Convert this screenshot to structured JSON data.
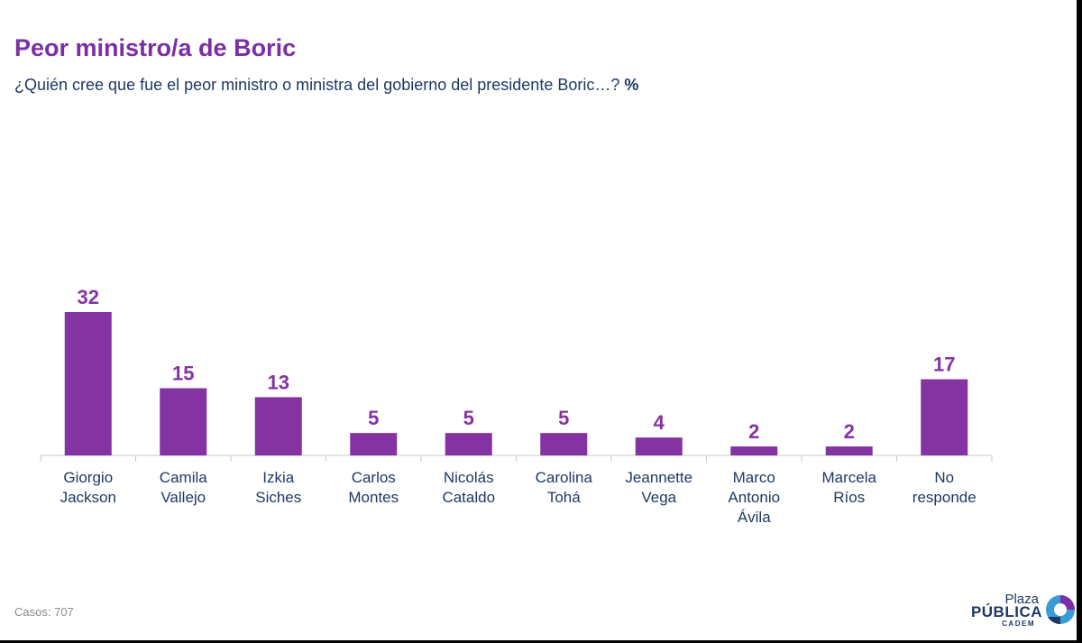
{
  "header": {
    "title": "Peor ministro/a de Boric",
    "subtitle": "¿Quién cree que fue el peor ministro o ministra del gobierno del presidente Boric…?",
    "unit": "%"
  },
  "footer": {
    "casos_label": "Casos:",
    "casos_value": "707"
  },
  "logo": {
    "top": "Plaza",
    "main": "PÚBLICA",
    "sub": "CADEM"
  },
  "colors": {
    "bar": "#8433a3",
    "title": "#7b2fa6",
    "label": "#1f3864",
    "axis": "#c8c8c8"
  },
  "chart_data": {
    "type": "bar",
    "title": "Peor ministro/a de Boric",
    "categories": [
      [
        "Giorgio",
        "Jackson"
      ],
      [
        "Camila",
        "Vallejo"
      ],
      [
        "Izkia",
        "Siches"
      ],
      [
        "Carlos",
        "Montes"
      ],
      [
        "Nicolás",
        "Cataldo"
      ],
      [
        "Carolina",
        "Tohá"
      ],
      [
        "Jeannette",
        "Vega"
      ],
      [
        "Marco",
        "Antonio",
        "Ávila"
      ],
      [
        "Marcela",
        "Ríos"
      ],
      [
        "No",
        "responde"
      ]
    ],
    "values": [
      32,
      15,
      13,
      5,
      5,
      5,
      4,
      2,
      2,
      17
    ],
    "unit": "%",
    "ylim": [
      0,
      32
    ],
    "grid": false,
    "legend": "none",
    "data_labels": true
  }
}
